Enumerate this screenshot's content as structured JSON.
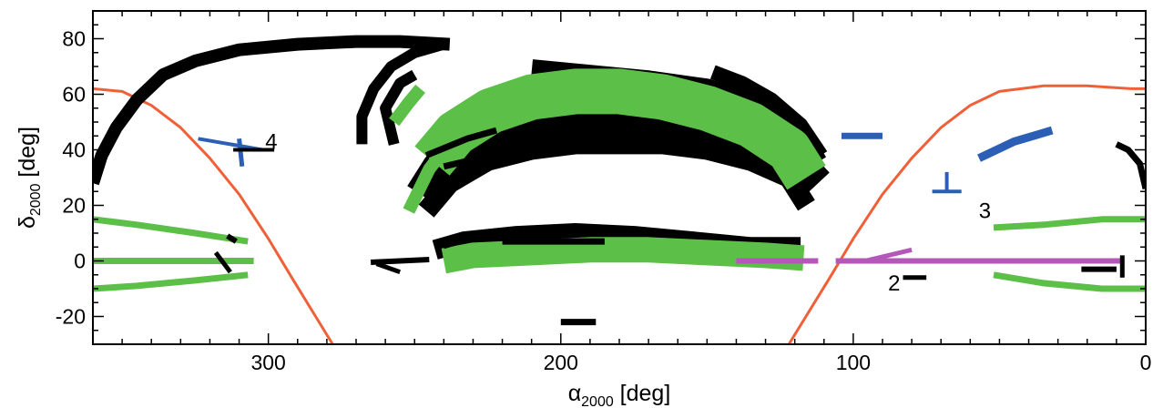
{
  "chart_data": {
    "type": "scatter",
    "xlabel_main": "α",
    "xlabel_sub": "2000",
    "xlabel_unit": " [deg]",
    "ylabel_main": "δ",
    "ylabel_sub": "2000",
    "ylabel_unit": " [deg]",
    "xlim": [
      360,
      0
    ],
    "ylim": [
      -30,
      90
    ],
    "xticks": [
      {
        "value": 300,
        "label": "300"
      },
      {
        "value": 200,
        "label": "200"
      },
      {
        "value": 100,
        "label": "100"
      },
      {
        "value": 0,
        "label": "0"
      }
    ],
    "yticks": [
      {
        "value": -20,
        "label": "-20"
      },
      {
        "value": 0,
        "label": "0"
      },
      {
        "value": 20,
        "label": "20"
      },
      {
        "value": 40,
        "label": "40"
      },
      {
        "value": 60,
        "label": "60"
      },
      {
        "value": 80,
        "label": "80"
      }
    ],
    "grid": false,
    "colors": {
      "black": "#000000",
      "green": "#5cbf47",
      "blue": "#2b5fb5",
      "magenta": "#b358b8",
      "orange": "#f06038"
    },
    "curves": [
      {
        "color": "orange",
        "width": 3,
        "points": [
          [
            360,
            62
          ],
          [
            350,
            61
          ],
          [
            340,
            56
          ],
          [
            330,
            48
          ],
          [
            320,
            37
          ],
          [
            310,
            24
          ],
          [
            300,
            8
          ],
          [
            292,
            -6
          ],
          [
            285,
            -18
          ],
          [
            278,
            -30
          ]
        ]
      },
      {
        "color": "orange",
        "width": 3,
        "points": [
          [
            122,
            -30
          ],
          [
            115,
            -18
          ],
          [
            108,
            -6
          ],
          [
            100,
            8
          ],
          [
            90,
            24
          ],
          [
            80,
            37
          ],
          [
            70,
            48
          ],
          [
            60,
            56
          ],
          [
            50,
            61
          ],
          [
            35,
            63
          ],
          [
            20,
            63
          ],
          [
            5,
            62
          ],
          [
            0,
            62
          ]
        ]
      },
      {
        "color": "black",
        "width": 14,
        "points": [
          [
            360,
            28
          ],
          [
            357,
            38
          ],
          [
            352,
            48
          ],
          [
            345,
            58
          ],
          [
            336,
            67
          ],
          [
            325,
            72
          ],
          [
            310,
            76
          ],
          [
            290,
            78
          ],
          [
            270,
            79
          ],
          [
            255,
            79
          ],
          [
            238,
            78
          ]
        ]
      },
      {
        "color": "black",
        "width": 12,
        "points": [
          [
            268,
            42
          ],
          [
            268,
            52
          ],
          [
            264,
            62
          ],
          [
            258,
            70
          ],
          [
            250,
            75
          ],
          [
            240,
            78
          ]
        ]
      },
      {
        "color": "black",
        "width": 12,
        "points": [
          [
            257,
            42
          ],
          [
            260,
            55
          ],
          [
            255,
            64
          ],
          [
            250,
            67
          ]
        ]
      },
      {
        "color": "black",
        "width": 34,
        "points": [
          [
            248,
            24
          ],
          [
            242,
            34
          ],
          [
            230,
            43
          ],
          [
            215,
            47
          ],
          [
            200,
            49
          ],
          [
            185,
            50
          ],
          [
            170,
            49
          ],
          [
            150,
            47
          ],
          [
            135,
            43
          ],
          [
            120,
            37
          ],
          [
            112,
            28
          ]
        ]
      },
      {
        "color": "black",
        "width": 22,
        "points": [
          [
            246,
            18
          ],
          [
            238,
            28
          ],
          [
            225,
            36
          ],
          [
            210,
            40
          ],
          [
            195,
            42
          ],
          [
            180,
            42
          ],
          [
            165,
            42
          ],
          [
            150,
            40
          ],
          [
            135,
            36
          ],
          [
            122,
            30
          ],
          [
            116,
            20
          ]
        ]
      },
      {
        "color": "black",
        "width": 28,
        "points": [
          [
            210,
            68
          ],
          [
            190,
            66
          ],
          [
            170,
            64
          ],
          [
            150,
            61
          ],
          [
            135,
            56
          ],
          [
            120,
            47
          ],
          [
            113,
            35
          ]
        ]
      },
      {
        "color": "black",
        "width": 16,
        "points": [
          [
            148,
            68
          ],
          [
            138,
            64
          ],
          [
            128,
            58
          ],
          [
            118,
            49
          ],
          [
            111,
            38
          ]
        ]
      },
      {
        "color": "green",
        "width": 50,
        "points": [
          [
            244,
            36
          ],
          [
            236,
            46
          ],
          [
            224,
            54
          ],
          [
            210,
            59
          ],
          [
            195,
            61
          ],
          [
            180,
            61
          ],
          [
            165,
            59
          ],
          [
            150,
            55
          ],
          [
            135,
            49
          ],
          [
            122,
            40
          ],
          [
            116,
            30
          ]
        ]
      },
      {
        "color": "green",
        "width": 14,
        "points": [
          [
            252,
            18
          ],
          [
            245,
            33
          ],
          [
            237,
            44
          ]
        ]
      },
      {
        "color": "green",
        "width": 14,
        "points": [
          [
            257,
            50
          ],
          [
            252,
            57
          ],
          [
            248,
            62
          ]
        ]
      },
      {
        "color": "black",
        "width": 7,
        "points": [
          [
            246,
            38
          ],
          [
            232,
            44
          ],
          [
            222,
            47
          ]
        ]
      },
      {
        "color": "black",
        "width": 7,
        "points": [
          [
            240,
            34
          ],
          [
            228,
            37
          ]
        ]
      },
      {
        "color": "black",
        "width": 22,
        "points": [
          [
            243,
            4
          ],
          [
            233,
            7
          ],
          [
            215,
            9
          ],
          [
            195,
            10
          ],
          [
            175,
            9
          ],
          [
            155,
            7
          ],
          [
            135,
            5
          ],
          [
            118,
            5
          ]
        ]
      },
      {
        "color": "green",
        "width": 28,
        "points": [
          [
            240,
            0
          ],
          [
            230,
            2
          ],
          [
            210,
            3
          ],
          [
            190,
            4
          ],
          [
            170,
            4
          ],
          [
            150,
            3
          ],
          [
            130,
            2
          ],
          [
            117,
            1
          ]
        ]
      },
      {
        "color": "black",
        "width": 6,
        "points": [
          [
            265,
            -0.5
          ],
          [
            245,
            0.5
          ]
        ]
      },
      {
        "color": "black",
        "width": 5,
        "points": [
          [
            263,
            -1
          ],
          [
            255,
            -4
          ]
        ]
      },
      {
        "color": "black",
        "width": 7,
        "points": [
          [
            220,
            7
          ],
          [
            185,
            7
          ]
        ]
      },
      {
        "color": "green",
        "width": 7,
        "points": [
          [
            360,
            15
          ],
          [
            345,
            13
          ],
          [
            325,
            10
          ],
          [
            307,
            7
          ]
        ]
      },
      {
        "color": "green",
        "width": 7,
        "points": [
          [
            360,
            0
          ],
          [
            305,
            0
          ]
        ]
      },
      {
        "color": "green",
        "width": 7,
        "points": [
          [
            360,
            -10
          ],
          [
            345,
            -9
          ],
          [
            325,
            -7
          ],
          [
            307,
            -5
          ]
        ]
      },
      {
        "color": "black",
        "width": 6,
        "points": [
          [
            314,
            9
          ],
          [
            311,
            7
          ]
        ]
      },
      {
        "color": "black",
        "width": 5,
        "points": [
          [
            318,
            3
          ],
          [
            313,
            -4
          ]
        ]
      },
      {
        "color": "green",
        "width": 7,
        "points": [
          [
            0,
            15
          ],
          [
            15,
            15
          ],
          [
            35,
            13
          ],
          [
            52,
            12
          ]
        ]
      },
      {
        "color": "green",
        "width": 7,
        "points": [
          [
            0,
            -10
          ],
          [
            15,
            -10
          ],
          [
            35,
            -8
          ],
          [
            52,
            -5
          ]
        ]
      },
      {
        "color": "magenta",
        "width": 6,
        "points": [
          [
            140,
            0
          ],
          [
            112,
            0
          ]
        ]
      },
      {
        "color": "magenta",
        "width": 6,
        "points": [
          [
            106,
            0
          ],
          [
            8,
            0
          ]
        ]
      },
      {
        "color": "magenta",
        "width": 5,
        "points": [
          [
            96,
            0
          ],
          [
            88,
            2
          ],
          [
            80,
            4
          ]
        ]
      },
      {
        "color": "black",
        "width": 6,
        "points": [
          [
            10,
            -3
          ],
          [
            22,
            -3
          ]
        ]
      },
      {
        "color": "black",
        "width": 5,
        "points": [
          [
            8,
            -6
          ],
          [
            8,
            2
          ]
        ]
      },
      {
        "color": "black",
        "width": 5,
        "points": [
          [
            75,
            -6
          ],
          [
            83,
            -6
          ]
        ]
      },
      {
        "color": "black",
        "width": 7,
        "points": [
          [
            0,
            26
          ],
          [
            2,
            35
          ],
          [
            6,
            40
          ],
          [
            10,
            42
          ]
        ]
      },
      {
        "color": "blue",
        "width": 7,
        "points": [
          [
            104,
            45
          ],
          [
            90,
            45
          ]
        ]
      },
      {
        "color": "blue",
        "width": 9,
        "points": [
          [
            57,
            37
          ],
          [
            45,
            43
          ],
          [
            32,
            47
          ]
        ]
      },
      {
        "color": "blue",
        "width": 4,
        "points": [
          [
            68,
            25
          ],
          [
            68,
            32
          ]
        ]
      },
      {
        "color": "blue",
        "width": 4,
        "points": [
          [
            73,
            25
          ],
          [
            63,
            25
          ]
        ]
      },
      {
        "color": "blue",
        "width": 4,
        "points": [
          [
            324,
            44
          ],
          [
            302,
            40
          ]
        ]
      },
      {
        "color": "blue",
        "width": 5,
        "points": [
          [
            310,
            44
          ],
          [
            309,
            34
          ]
        ]
      },
      {
        "color": "black",
        "width": 4,
        "points": [
          [
            312,
            40
          ],
          [
            298,
            40
          ]
        ]
      },
      {
        "color": "black",
        "width": 7,
        "points": [
          [
            200,
            -22
          ],
          [
            188,
            -22
          ]
        ]
      },
      {
        "color": "black",
        "width": 4,
        "points": [
          [
            240,
            5
          ],
          [
            230,
            8
          ]
        ]
      }
    ],
    "annotations": [
      {
        "text": "2",
        "x": 86,
        "y": -8
      },
      {
        "text": "3",
        "x": 55,
        "y": 18
      },
      {
        "text": "4",
        "x": 299,
        "y": 43
      }
    ]
  }
}
